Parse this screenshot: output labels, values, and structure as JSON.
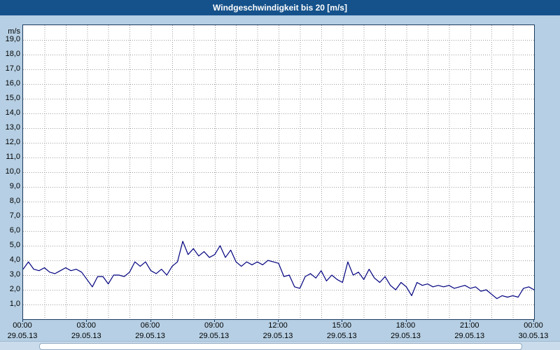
{
  "title_bar": {
    "title": "Windgeschwindigkeit bis 20 [m/s]"
  },
  "colors": {
    "titlebar_bg": "#15528b",
    "page_bg": "#b6cfe4",
    "plot_bg": "#ffffff",
    "plot_border": "#1b3b5f",
    "grid": "#9c9c9c",
    "line": "#00007f",
    "text": "#000000"
  },
  "chart_data": {
    "type": "line",
    "title": "Windgeschwindigkeit bis 20 [m/s]",
    "xlabel": "",
    "ylabel": "m/s",
    "ylim": [
      0,
      20
    ],
    "xlim_hours": [
      0,
      24
    ],
    "grid": "dotted, vertical every 1 hour, horizontal every 1.0 m/s",
    "legend": "none",
    "y_tick_labels": [
      "19,0",
      "18,0",
      "17,0",
      "16,0",
      "15,0",
      "14,0",
      "13,0",
      "12,0",
      "11,0",
      "10,0",
      "9,0",
      "8,0",
      "7,0",
      "6,0",
      "5,0",
      "4,0",
      "3,0",
      "2,0",
      "1,0"
    ],
    "x_ticks": [
      {
        "time": "00:00",
        "date": "29.05.13"
      },
      {
        "time": "03:00",
        "date": "29.05.13"
      },
      {
        "time": "06:00",
        "date": "29.05.13"
      },
      {
        "time": "09:00",
        "date": "29.05.13"
      },
      {
        "time": "12:00",
        "date": "29.05.13"
      },
      {
        "time": "15:00",
        "date": "29.05.13"
      },
      {
        "time": "18:00",
        "date": "29.05.13"
      },
      {
        "time": "21:00",
        "date": "29.05.13"
      },
      {
        "time": "00:00",
        "date": "30.05.13"
      }
    ],
    "series": [
      {
        "name": "Windgeschwindigkeit",
        "unit": "m/s",
        "color": "#00007f",
        "start_hour": 0,
        "interval_minutes": 15,
        "values": [
          3.4,
          3.9,
          3.4,
          3.3,
          3.5,
          3.2,
          3.1,
          3.3,
          3.5,
          3.3,
          3.4,
          3.2,
          2.7,
          2.2,
          2.9,
          2.9,
          2.4,
          3.0,
          3.0,
          2.9,
          3.2,
          3.9,
          3.6,
          3.9,
          3.3,
          3.1,
          3.4,
          3.0,
          3.6,
          3.9,
          5.3,
          4.4,
          4.8,
          4.3,
          4.6,
          4.2,
          4.4,
          5.0,
          4.2,
          4.7,
          3.9,
          3.6,
          3.9,
          3.7,
          3.9,
          3.7,
          4.0,
          3.9,
          3.8,
          2.9,
          3.0,
          2.2,
          2.1,
          2.9,
          3.1,
          2.8,
          3.3,
          2.6,
          3.0,
          2.7,
          2.5,
          3.9,
          3.0,
          3.2,
          2.7,
          3.4,
          2.8,
          2.5,
          2.9,
          2.3,
          2.0,
          2.5,
          2.2,
          1.6,
          2.5,
          2.3,
          2.4,
          2.2,
          2.3,
          2.2,
          2.3,
          2.1,
          2.2,
          2.3,
          2.1,
          2.2,
          1.9,
          2.0,
          1.7,
          1.4,
          1.6,
          1.5,
          1.6,
          1.5,
          2.1,
          2.2,
          2.0
        ]
      }
    ]
  }
}
